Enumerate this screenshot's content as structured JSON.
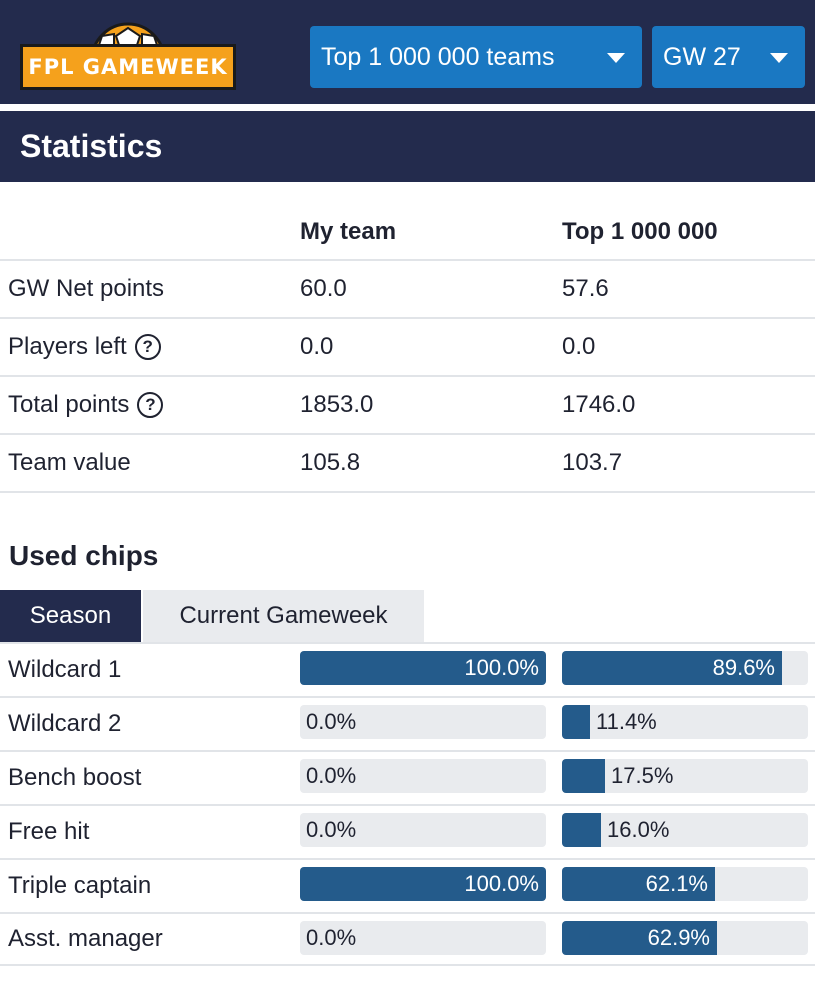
{
  "header": {
    "logo_text": "FPL GAMEWEEK",
    "teams_select": "Top 1 000 000 teams",
    "gw_select": "GW 27"
  },
  "section_title": "Statistics",
  "stats": {
    "columns": [
      "",
      "My team",
      "Top 1 000 000"
    ],
    "rows": [
      {
        "label": "GW Net points",
        "help": false,
        "mine": "60.0",
        "top": "57.6"
      },
      {
        "label": "Players left",
        "help": true,
        "mine": "0.0",
        "top": "0.0"
      },
      {
        "label": "Total points",
        "help": true,
        "mine": "1853.0",
        "top": "1746.0"
      },
      {
        "label": "Team value",
        "help": false,
        "mine": "105.8",
        "top": "103.7"
      }
    ]
  },
  "chips": {
    "title": "Used chips",
    "tabs": [
      {
        "label": "Season",
        "active": true
      },
      {
        "label": "Current Gameweek",
        "active": false
      }
    ],
    "rows": [
      {
        "label": "Wildcard 1",
        "mine": 100.0,
        "mine_text": "100.0%",
        "top": 89.6,
        "top_text": "89.6%"
      },
      {
        "label": "Wildcard 2",
        "mine": 0.0,
        "mine_text": "0.0%",
        "top": 11.4,
        "top_text": "11.4%"
      },
      {
        "label": "Bench boost",
        "mine": 0.0,
        "mine_text": "0.0%",
        "top": 17.5,
        "top_text": "17.5%"
      },
      {
        "label": "Free hit",
        "mine": 0.0,
        "mine_text": "0.0%",
        "top": 16.0,
        "top_text": "16.0%"
      },
      {
        "label": "Triple captain",
        "mine": 100.0,
        "mine_text": "100.0%",
        "top": 62.1,
        "top_text": "62.1%"
      },
      {
        "label": "Asst. manager",
        "mine": 0.0,
        "mine_text": "0.0%",
        "top": 62.9,
        "top_text": "62.9%"
      }
    ]
  },
  "colors": {
    "navy": "#232b4d",
    "select_blue": "#1a78c2",
    "bar_fill": "#245b8b",
    "bar_track": "#e9ebee",
    "logo_orange": "#f5a11c"
  },
  "icons": {
    "help": "question-circle-icon",
    "caret": "caret-down-icon",
    "logo_ball": "football-icon"
  }
}
